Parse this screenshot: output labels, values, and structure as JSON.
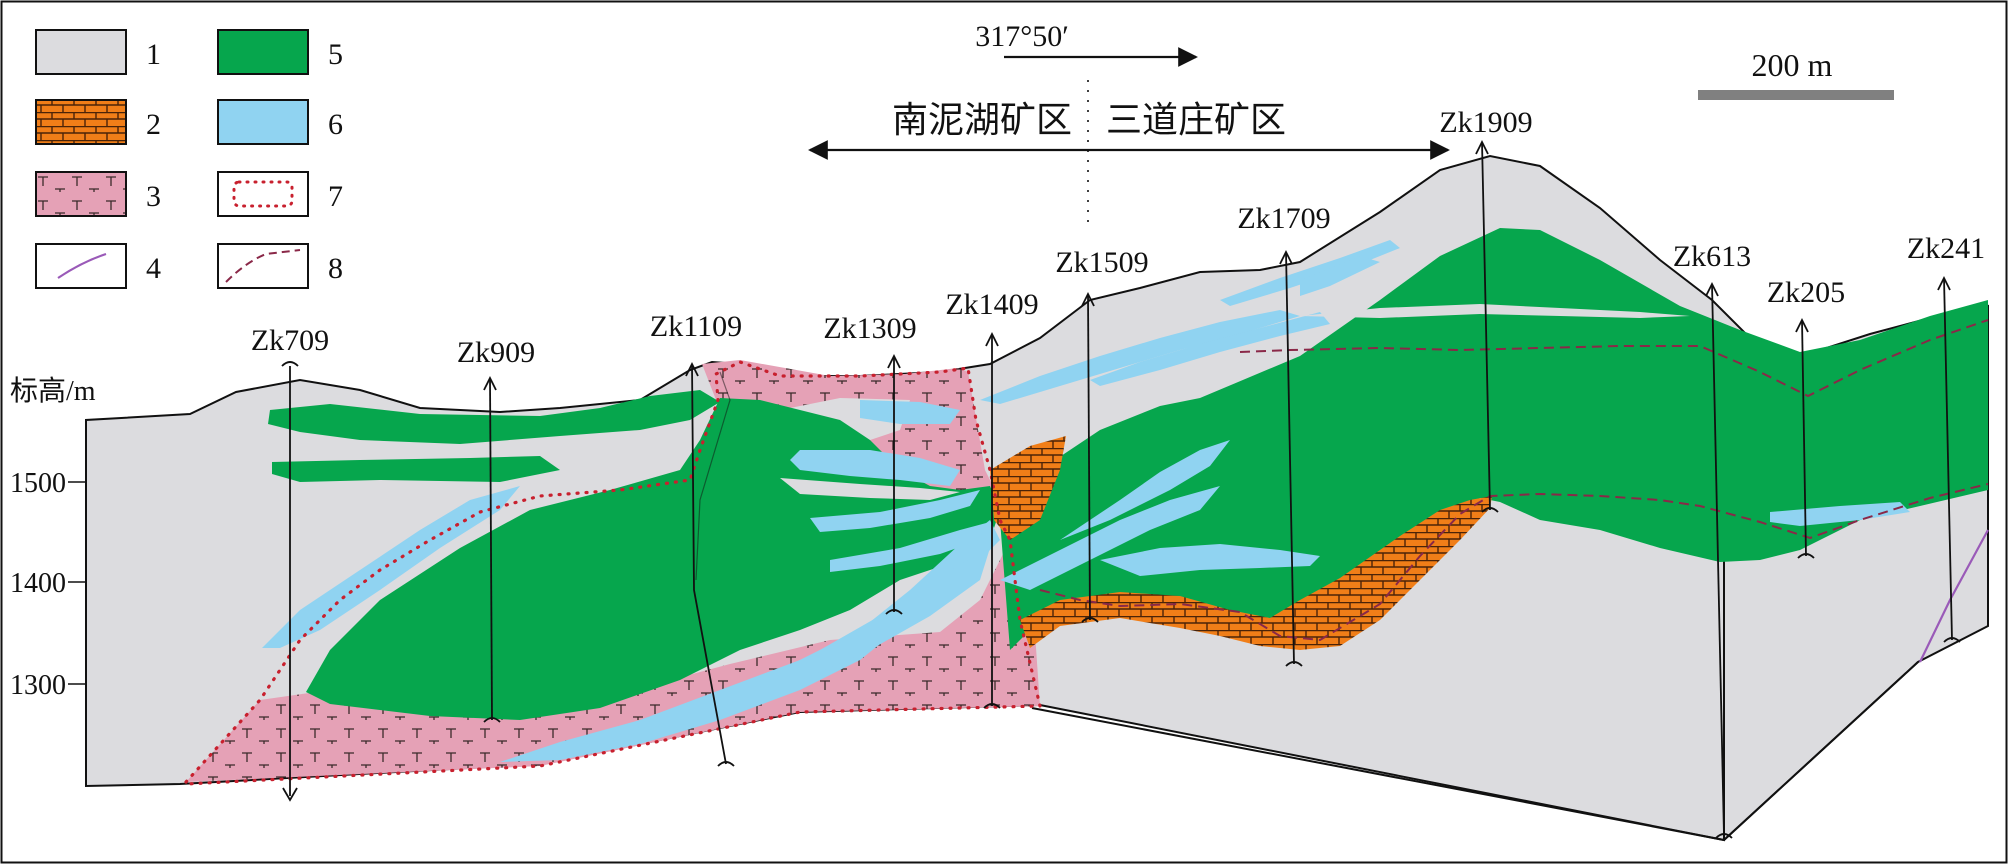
{
  "legend": {
    "items": [
      {
        "num": "1",
        "pattern": "grey-host",
        "color": "#dcdcdf"
      },
      {
        "num": "2",
        "pattern": "brick-limestone",
        "color": "#f07e18"
      },
      {
        "num": "3",
        "pattern": "pink-intrusive",
        "color": "#e5a1b6"
      },
      {
        "num": "4",
        "pattern": "purple-line",
        "color": "#9a5ab8"
      },
      {
        "num": "5",
        "pattern": "green-ore",
        "color": "#06a64d"
      },
      {
        "num": "6",
        "pattern": "blue-ore",
        "color": "#90d3f1"
      },
      {
        "num": "7",
        "pattern": "red-dotted-boundary",
        "color": "#c8202e"
      },
      {
        "num": "8",
        "pattern": "dashed-boundary",
        "color": "#8a2848"
      }
    ]
  },
  "orientation_label": "317°50′",
  "scale_label": "200 m",
  "district_left": "南泥湖矿区",
  "district_right": "三道庄矿区",
  "elevation_title": "标高/m",
  "elevation_ticks": [
    "1500",
    "1400",
    "1300"
  ],
  "boreholes": [
    {
      "id": "Zk709"
    },
    {
      "id": "Zk909"
    },
    {
      "id": "Zk1109"
    },
    {
      "id": "Zk1309"
    },
    {
      "id": "Zk1409"
    },
    {
      "id": "Zk1509"
    },
    {
      "id": "Zk1709"
    },
    {
      "id": "Zk1909"
    },
    {
      "id": "Zk613"
    },
    {
      "id": "Zk205"
    },
    {
      "id": "Zk241"
    }
  ]
}
